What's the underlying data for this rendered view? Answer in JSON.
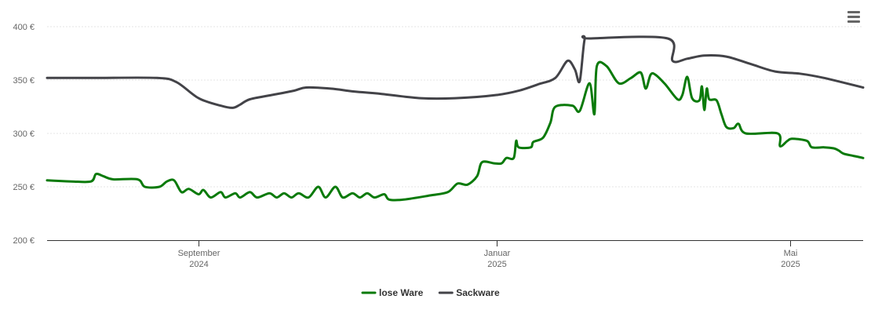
{
  "menu": {
    "icon": "hamburger-menu-icon"
  },
  "chart_data": {
    "type": "line",
    "title": "",
    "xlabel": "",
    "ylabel": "",
    "y_unit": "€",
    "ylim": [
      200,
      400
    ],
    "yticks": [
      {
        "value": 200,
        "label": "200 €"
      },
      {
        "value": 250,
        "label": "250 €"
      },
      {
        "value": 300,
        "label": "300 €"
      },
      {
        "value": 350,
        "label": "350 €"
      },
      {
        "value": 400,
        "label": "400 €"
      }
    ],
    "xlim": [
      "2024-07-01",
      "2025-05-31"
    ],
    "xticks": [
      {
        "date": "2024-09-01",
        "line1": "September",
        "line2": "2024"
      },
      {
        "date": "2025-01-01",
        "line1": "Januar",
        "line2": "2025"
      },
      {
        "date": "2025-05-01",
        "line1": "Mai",
        "line2": "2025"
      }
    ],
    "grid": true,
    "legend_position": "bottom-center",
    "series": [
      {
        "name": "lose Ware",
        "color": "#0a7a0a",
        "points": [
          [
            "2024-07-01",
            256
          ],
          [
            "2024-07-11",
            255
          ],
          [
            "2024-07-19",
            255
          ],
          [
            "2024-07-21",
            262
          ],
          [
            "2024-07-24",
            260
          ],
          [
            "2024-07-28",
            257
          ],
          [
            "2024-08-07",
            257
          ],
          [
            "2024-08-10",
            250
          ],
          [
            "2024-08-16",
            250
          ],
          [
            "2024-08-19",
            255
          ],
          [
            "2024-08-22",
            256
          ],
          [
            "2024-08-25",
            245
          ],
          [
            "2024-08-28",
            248
          ],
          [
            "2024-09-01",
            243
          ],
          [
            "2024-09-03",
            247
          ],
          [
            "2024-09-06",
            240
          ],
          [
            "2024-09-10",
            245
          ],
          [
            "2024-09-12",
            240
          ],
          [
            "2024-09-16",
            244
          ],
          [
            "2024-09-18",
            240
          ],
          [
            "2024-09-22",
            245
          ],
          [
            "2024-09-25",
            240
          ],
          [
            "2024-09-30",
            244
          ],
          [
            "2024-10-03",
            240
          ],
          [
            "2024-10-06",
            244
          ],
          [
            "2024-10-09",
            240
          ],
          [
            "2024-10-12",
            244
          ],
          [
            "2024-10-16",
            240
          ],
          [
            "2024-10-20",
            250
          ],
          [
            "2024-10-23",
            240
          ],
          [
            "2024-10-27",
            250
          ],
          [
            "2024-10-30",
            240
          ],
          [
            "2024-11-03",
            244
          ],
          [
            "2024-11-06",
            240
          ],
          [
            "2024-11-09",
            244
          ],
          [
            "2024-11-12",
            240
          ],
          [
            "2024-11-16",
            243
          ],
          [
            "2024-11-18",
            238
          ],
          [
            "2024-11-24",
            238
          ],
          [
            "2024-12-05",
            242
          ],
          [
            "2024-12-12",
            245
          ],
          [
            "2024-12-16",
            253
          ],
          [
            "2024-12-20",
            252
          ],
          [
            "2024-12-24",
            260
          ],
          [
            "2024-12-26",
            273
          ],
          [
            "2024-12-31",
            272
          ],
          [
            "2025-01-03",
            272
          ],
          [
            "2025-01-05",
            277
          ],
          [
            "2025-01-08",
            277
          ],
          [
            "2025-01-09",
            293
          ],
          [
            "2025-01-10",
            287
          ],
          [
            "2025-01-15",
            287
          ],
          [
            "2025-01-16",
            292
          ],
          [
            "2025-01-20",
            296
          ],
          [
            "2025-01-23",
            310
          ],
          [
            "2025-01-25",
            325
          ],
          [
            "2025-02-01",
            326
          ],
          [
            "2025-02-04",
            321
          ],
          [
            "2025-02-08",
            347
          ],
          [
            "2025-02-10",
            318
          ],
          [
            "2025-02-11",
            363
          ],
          [
            "2025-02-15",
            363
          ],
          [
            "2025-02-20",
            347
          ],
          [
            "2025-02-25",
            352
          ],
          [
            "2025-03-01",
            357
          ],
          [
            "2025-03-03",
            342
          ],
          [
            "2025-03-05",
            355
          ],
          [
            "2025-03-07",
            355
          ],
          [
            "2025-03-11",
            346
          ],
          [
            "2025-03-16",
            332
          ],
          [
            "2025-03-18",
            336
          ],
          [
            "2025-03-20",
            353
          ],
          [
            "2025-03-22",
            333
          ],
          [
            "2025-03-25",
            331
          ],
          [
            "2025-03-26",
            344
          ],
          [
            "2025-03-27",
            322
          ],
          [
            "2025-03-28",
            342
          ],
          [
            "2025-03-29",
            332
          ],
          [
            "2025-04-01",
            331
          ],
          [
            "2025-04-03",
            318
          ],
          [
            "2025-04-05",
            306
          ],
          [
            "2025-04-08",
            305
          ],
          [
            "2025-04-10",
            309
          ],
          [
            "2025-04-13",
            300
          ],
          [
            "2025-04-26",
            300
          ],
          [
            "2025-04-27",
            288
          ],
          [
            "2025-04-30",
            293
          ],
          [
            "2025-05-02",
            295
          ],
          [
            "2025-05-08",
            293
          ],
          [
            "2025-05-10",
            287
          ],
          [
            "2025-05-15",
            287
          ],
          [
            "2025-05-19",
            286
          ],
          [
            "2025-05-21",
            284
          ],
          [
            "2025-05-23",
            281
          ],
          [
            "2025-05-27",
            279
          ],
          [
            "2025-05-31",
            277
          ]
        ]
      },
      {
        "name": "Sackware",
        "color": "#434348",
        "points": [
          [
            "2024-07-01",
            352
          ],
          [
            "2024-07-20",
            352
          ],
          [
            "2024-08-15",
            352
          ],
          [
            "2024-08-23",
            348
          ],
          [
            "2024-09-01",
            333
          ],
          [
            "2024-09-10",
            326
          ],
          [
            "2024-09-15",
            324
          ],
          [
            "2024-09-18",
            327
          ],
          [
            "2024-09-22",
            332
          ],
          [
            "2024-10-01",
            336
          ],
          [
            "2024-10-10",
            340
          ],
          [
            "2024-10-15",
            343
          ],
          [
            "2024-10-25",
            342
          ],
          [
            "2024-11-01",
            340
          ],
          [
            "2024-11-05",
            339
          ],
          [
            "2024-11-15",
            337
          ],
          [
            "2024-12-01",
            333
          ],
          [
            "2024-12-15",
            333
          ],
          [
            "2025-01-01",
            336
          ],
          [
            "2025-01-10",
            340
          ],
          [
            "2025-01-18",
            346
          ],
          [
            "2025-01-25",
            352
          ],
          [
            "2025-01-30",
            368
          ],
          [
            "2025-02-02",
            360
          ],
          [
            "2025-02-04",
            349
          ],
          [
            "2025-02-06",
            388
          ],
          [
            "2025-02-08",
            389
          ],
          [
            "2025-03-12",
            389
          ],
          [
            "2025-03-14",
            368
          ],
          [
            "2025-03-20",
            370
          ],
          [
            "2025-03-27",
            373
          ],
          [
            "2025-04-05",
            372
          ],
          [
            "2025-04-15",
            365
          ],
          [
            "2025-04-25",
            358
          ],
          [
            "2025-05-05",
            356
          ],
          [
            "2025-05-15",
            352
          ],
          [
            "2025-05-31",
            343
          ]
        ]
      }
    ]
  }
}
